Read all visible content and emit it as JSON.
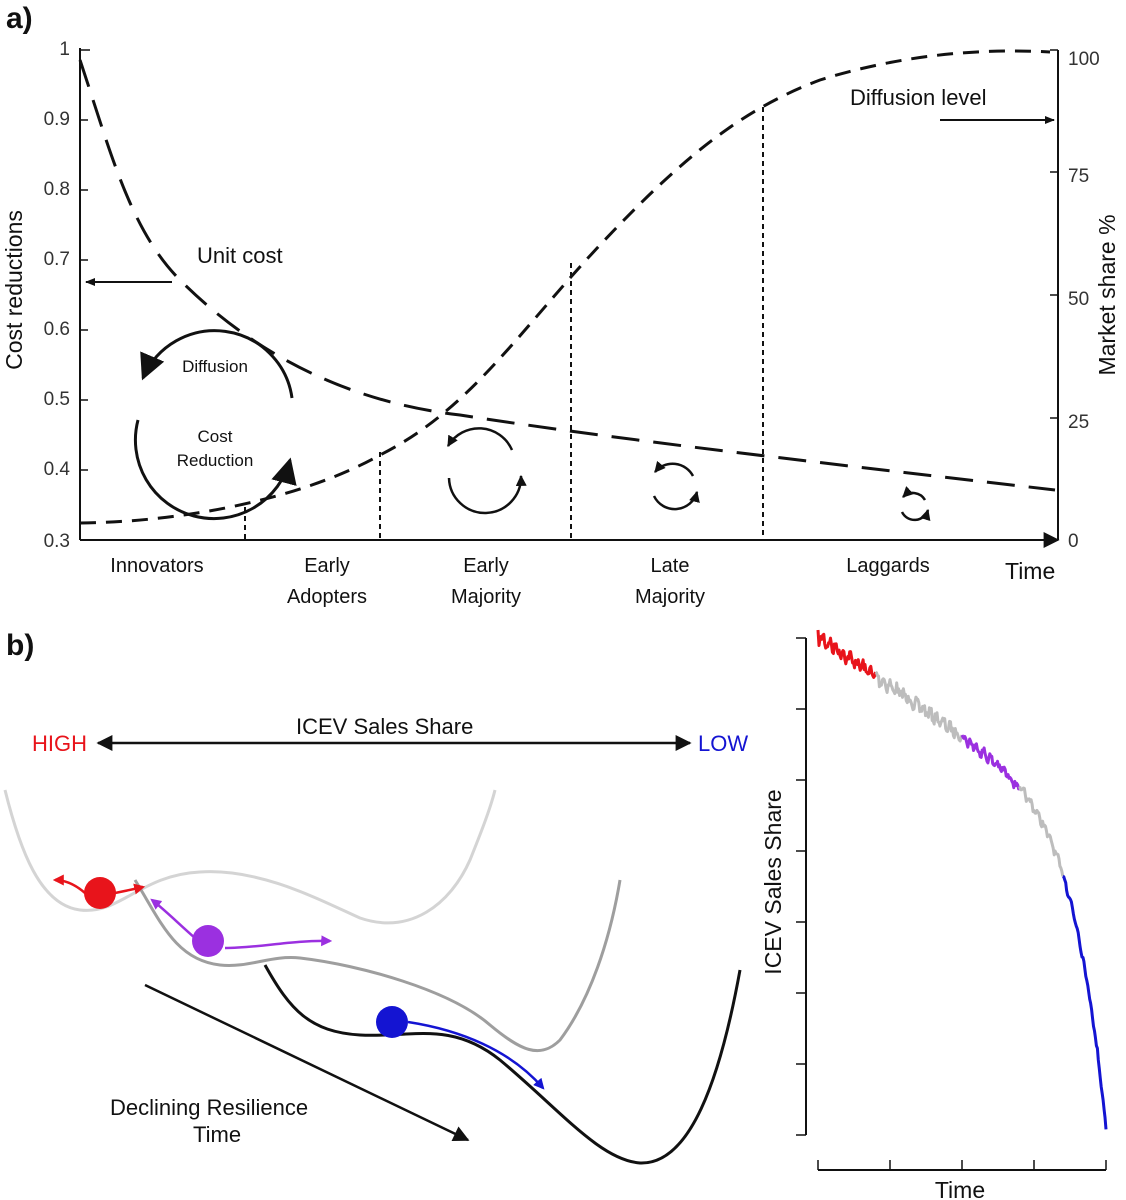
{
  "panel_a": {
    "label": "a)",
    "left_axis": {
      "title": "Cost reductions",
      "ticks": [
        "1",
        "0.9",
        "0.8",
        "0.7",
        "0.6",
        "0.5",
        "0.4",
        "0.3"
      ]
    },
    "right_axis": {
      "title": "Market share %",
      "ticks": [
        "100",
        "75",
        "50",
        "25",
        "0"
      ]
    },
    "x_axis_label": "Time",
    "categories": [
      {
        "line1": "Innovators",
        "line2": ""
      },
      {
        "line1": "Early",
        "line2": "Adopters"
      },
      {
        "line1": "Early",
        "line2": "Majority"
      },
      {
        "line1": "Late",
        "line2": "Majority"
      },
      {
        "line1": "Laggards",
        "line2": ""
      }
    ],
    "unit_cost_label": "Unit cost",
    "diffusion_level_label": "Diffusion level",
    "cycle_labels": {
      "top": "Diffusion",
      "bottom_line1": "Cost",
      "bottom_line2": "Reduction"
    }
  },
  "panel_b": {
    "label": "b)",
    "share_axis_title": "ICEV Sales Share",
    "high_label": "HIGH",
    "low_label": "LOW",
    "declining_line1": "Declining Resilience",
    "declining_line2": "Time",
    "ts_x_label": "Time",
    "ts_y_label": "ICEV Sales Share",
    "colors": {
      "high": "#e8141b",
      "mid": "#9b30e0",
      "low": "#1414d2",
      "neutral": "#bdbdbd"
    }
  }
}
